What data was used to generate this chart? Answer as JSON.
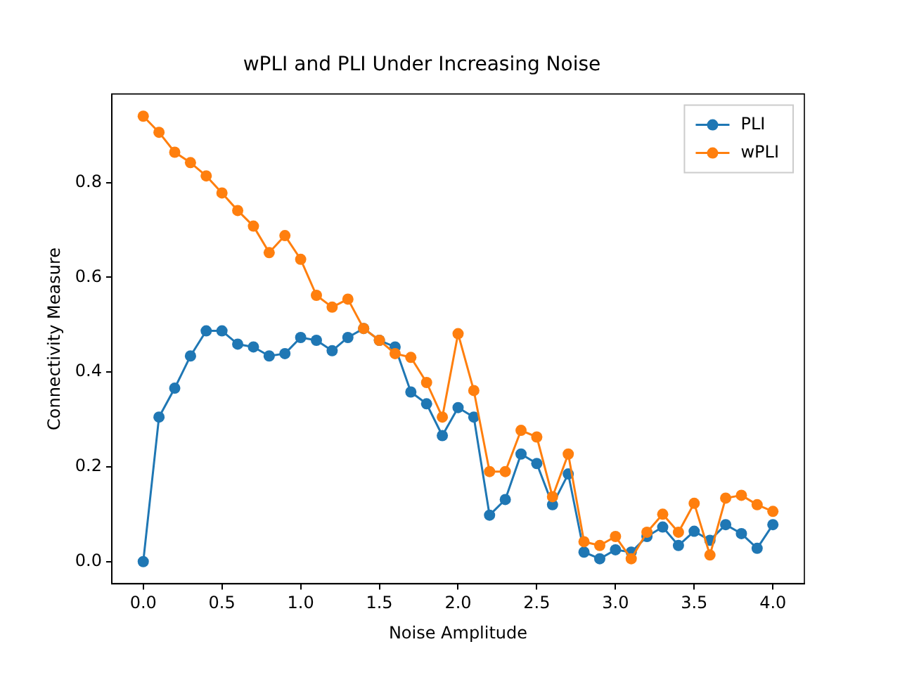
{
  "chart_data": {
    "type": "line",
    "title": "wPLI and PLI Under Increasing Noise",
    "xlabel": "Noise Amplitude",
    "ylabel": "Connectivity Measure",
    "x": [
      0,
      0.1,
      0.2,
      0.3,
      0.4,
      0.5,
      0.6,
      0.7,
      0.8,
      0.9,
      1.0,
      1.1,
      1.2,
      1.3,
      1.4,
      1.5,
      1.6,
      1.7,
      1.8,
      1.9,
      2.0,
      2.1,
      2.2,
      2.3,
      2.4,
      2.5,
      2.6,
      2.7,
      2.8,
      2.9,
      3.0,
      3.1,
      3.2,
      3.3,
      3.4,
      3.5,
      3.6,
      3.7,
      3.8,
      3.9,
      4.0
    ],
    "series": [
      {
        "name": "PLI",
        "color": "#1f77b4",
        "values": [
          0,
          0.305,
          0.366,
          0.434,
          0.487,
          0.487,
          0.459,
          0.453,
          0.434,
          0.439,
          0.473,
          0.467,
          0.445,
          0.473,
          0.492,
          0.467,
          0.453,
          0.358,
          0.333,
          0.266,
          0.325,
          0.305,
          0.098,
          0.131,
          0.227,
          0.207,
          0.12,
          0.185,
          0.02,
          0.006,
          0.025,
          0.02,
          0.053,
          0.073,
          0.034,
          0.064,
          0.045,
          0.078,
          0.059,
          0.028,
          0.078
        ]
      },
      {
        "name": "wPLI",
        "color": "#ff7f0e",
        "values": [
          0.94,
          0.906,
          0.864,
          0.842,
          0.814,
          0.778,
          0.741,
          0.708,
          0.652,
          0.688,
          0.638,
          0.562,
          0.537,
          0.554,
          0.492,
          0.467,
          0.439,
          0.431,
          0.378,
          0.305,
          0.481,
          0.361,
          0.19,
          0.19,
          0.277,
          0.263,
          0.137,
          0.227,
          0.042,
          0.034,
          0.053,
          0.006,
          0.062,
          0.1,
          0.062,
          0.123,
          0.014,
          0.134,
          0.14,
          0.12,
          0.106
        ]
      }
    ],
    "xlim": [
      -0.2,
      4.2
    ],
    "xticks": [
      {
        "value": 0,
        "label": "0.0"
      },
      {
        "value": 0.5,
        "label": "0.5"
      },
      {
        "value": 1,
        "label": "1.0"
      },
      {
        "value": 1.5,
        "label": "1.5"
      },
      {
        "value": 2,
        "label": "2.0"
      },
      {
        "value": 2.5,
        "label": "2.5"
      },
      {
        "value": 3,
        "label": "3.0"
      },
      {
        "value": 3.5,
        "label": "3.5"
      },
      {
        "value": 4,
        "label": "4.0"
      }
    ],
    "ylim": [
      -0.047,
      0.987
    ],
    "yticks": [
      {
        "value": 0,
        "label": "0.0"
      },
      {
        "value": 0.2,
        "label": "0.2"
      },
      {
        "value": 0.4,
        "label": "0.4"
      },
      {
        "value": 0.6,
        "label": "0.6"
      },
      {
        "value": 0.8,
        "label": "0.8"
      }
    ],
    "grid": false,
    "legend": "top right",
    "marker": "circle",
    "line_style": "solid"
  }
}
